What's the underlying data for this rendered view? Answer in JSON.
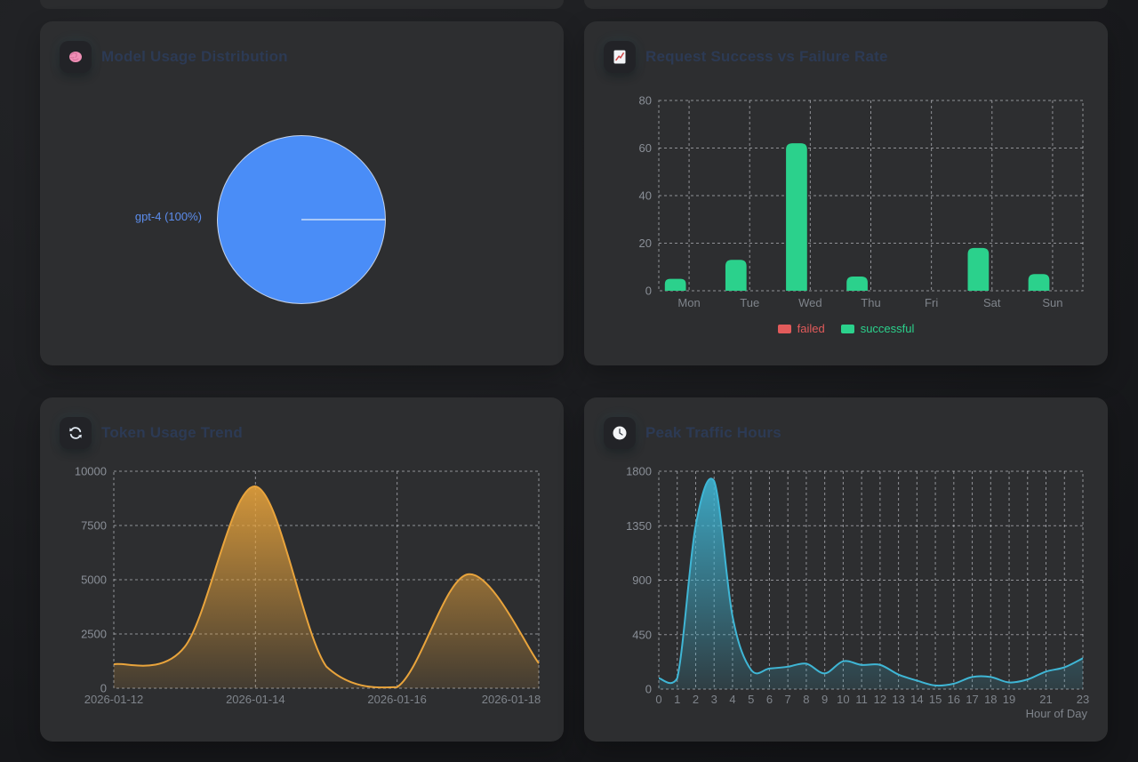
{
  "cards": [
    {
      "title": "Model Usage Distribution",
      "icon": "brain-icon"
    },
    {
      "title": "Request Success vs Failure Rate",
      "icon": "chart-up-icon"
    },
    {
      "title": "Token Usage Trend",
      "icon": "refresh-icon"
    },
    {
      "title": "Peak Traffic Hours",
      "icon": "clock-icon"
    }
  ],
  "colors": {
    "card_bg": "#2d2e30",
    "title": "#2c3a54",
    "grid": "rgba(225,228,235,0.55)",
    "y_tick": "#8a8f97",
    "x_tick": "#7f848b",
    "pie_blue": "#4a8df7",
    "pie_label_blue": "#5c8ded",
    "bar_green": "#2bd18c",
    "legend_red": "#e25b5b",
    "area_orange": "#e9a43c",
    "area_teal": "#3fb6d5"
  },
  "chart_data": [
    {
      "type": "pie",
      "title": "Model Usage Distribution",
      "slices": [
        {
          "label": "gpt-4",
          "percent": 100,
          "color": "#4a8df7"
        }
      ],
      "label_text": "gpt-4 (100%)",
      "legend_position": "none"
    },
    {
      "type": "bar",
      "title": "Request Success vs Failure Rate",
      "categories": [
        "Mon",
        "Tue",
        "Wed",
        "Thu",
        "Fri",
        "Sat",
        "Sun"
      ],
      "series": [
        {
          "name": "failed",
          "color": "#e25b5b",
          "values": [
            0,
            0,
            0,
            0,
            0,
            0,
            0
          ]
        },
        {
          "name": "successful",
          "color": "#2bd18c",
          "values": [
            5,
            13,
            62,
            6,
            0,
            18,
            7
          ]
        }
      ],
      "ylim": [
        0,
        80
      ],
      "yticks": [
        0,
        20,
        40,
        60,
        80
      ],
      "grid": "dashed",
      "legend_position": "bottom"
    },
    {
      "type": "area",
      "title": "Token Usage Trend",
      "x": [
        "2026-01-12",
        "2026-01-13",
        "2026-01-14",
        "2026-01-15",
        "2026-01-16",
        "2026-01-17",
        "2026-01-18"
      ],
      "values": [
        1100,
        1900,
        9300,
        1000,
        50,
        5250,
        1150
      ],
      "x_tick_indices": [
        0,
        2,
        4,
        6
      ],
      "ylim": [
        0,
        10000
      ],
      "yticks": [
        0,
        2500,
        5000,
        7500,
        10000
      ],
      "grid": "dashed",
      "color": "#e9a43c",
      "xlabel": "",
      "ylabel": ""
    },
    {
      "type": "area",
      "title": "Peak Traffic Hours",
      "x": [
        0,
        1,
        2,
        3,
        4,
        5,
        6,
        7,
        8,
        9,
        10,
        11,
        12,
        13,
        14,
        15,
        16,
        17,
        18,
        19,
        20,
        21,
        22,
        23
      ],
      "values": [
        90,
        90,
        1350,
        1720,
        600,
        160,
        170,
        185,
        210,
        130,
        230,
        200,
        200,
        120,
        70,
        30,
        45,
        100,
        100,
        55,
        80,
        145,
        180,
        255
      ],
      "hidden_x_labels": [
        20,
        22
      ],
      "ylim": [
        0,
        1800
      ],
      "yticks": [
        0,
        450,
        900,
        1350,
        1800
      ],
      "grid": "dashed",
      "color": "#3fb6d5",
      "xlabel": "Hour of Day",
      "ylabel": ""
    }
  ]
}
